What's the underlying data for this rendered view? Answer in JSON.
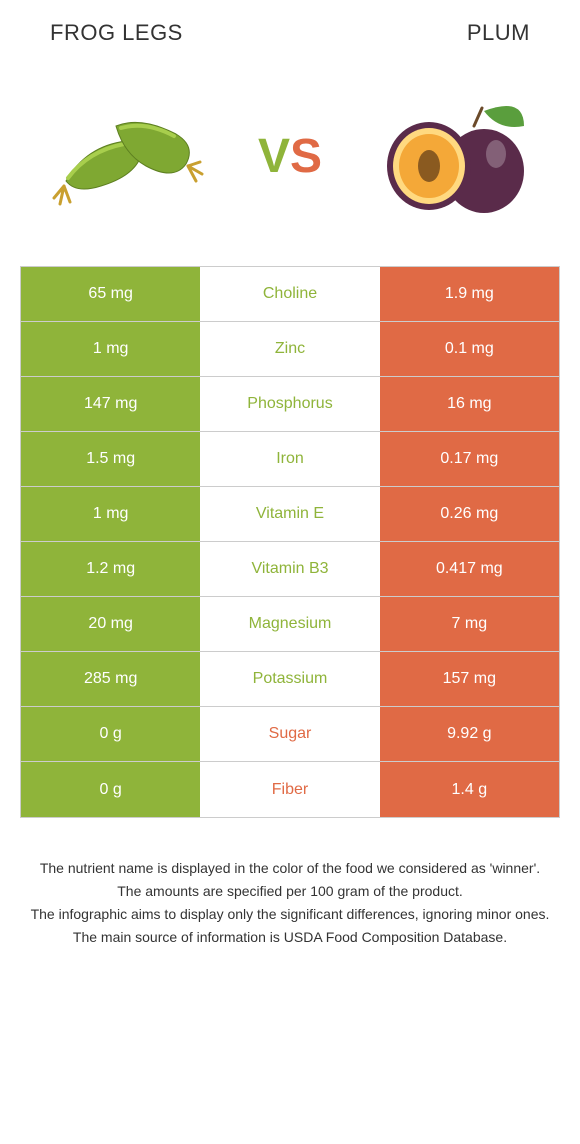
{
  "header": {
    "left_title": "Frog legs",
    "right_title": "Plum"
  },
  "vs": {
    "v": "V",
    "s": "S"
  },
  "colors": {
    "left_bg": "#8fb43a",
    "right_bg": "#e06a45",
    "left_text": "#8fb43a",
    "right_text": "#e06a45",
    "row_border": "#cccccc",
    "frog_green": "#7fa832",
    "frog_green_light": "#a8ce4d",
    "plum_purple": "#5a2b4a",
    "plum_flesh": "#f4a838",
    "plum_flesh_light": "#ffd980",
    "plum_leaf": "#5a9e3d"
  },
  "rows": [
    {
      "left": "65 mg",
      "label": "Choline",
      "right": "1.9 mg",
      "winner": "left"
    },
    {
      "left": "1 mg",
      "label": "Zinc",
      "right": "0.1 mg",
      "winner": "left"
    },
    {
      "left": "147 mg",
      "label": "Phosphorus",
      "right": "16 mg",
      "winner": "left"
    },
    {
      "left": "1.5 mg",
      "label": "Iron",
      "right": "0.17 mg",
      "winner": "left"
    },
    {
      "left": "1 mg",
      "label": "Vitamin E",
      "right": "0.26 mg",
      "winner": "left"
    },
    {
      "left": "1.2 mg",
      "label": "Vitamin B3",
      "right": "0.417 mg",
      "winner": "left"
    },
    {
      "left": "20 mg",
      "label": "Magnesium",
      "right": "7 mg",
      "winner": "left"
    },
    {
      "left": "285 mg",
      "label": "Potassium",
      "right": "157 mg",
      "winner": "left"
    },
    {
      "left": "0 g",
      "label": "Sugar",
      "right": "9.92 g",
      "winner": "right"
    },
    {
      "left": "0 g",
      "label": "Fiber",
      "right": "1.4 g",
      "winner": "right"
    }
  ],
  "footer": {
    "line1": "The nutrient name is displayed in the color of the food we considered as 'winner'.",
    "line2": "The amounts are specified per 100 gram of the product.",
    "line3": "The infographic aims to display only the significant differences, ignoring minor ones.",
    "line4": "The main source of information is USDA Food Composition Database."
  }
}
